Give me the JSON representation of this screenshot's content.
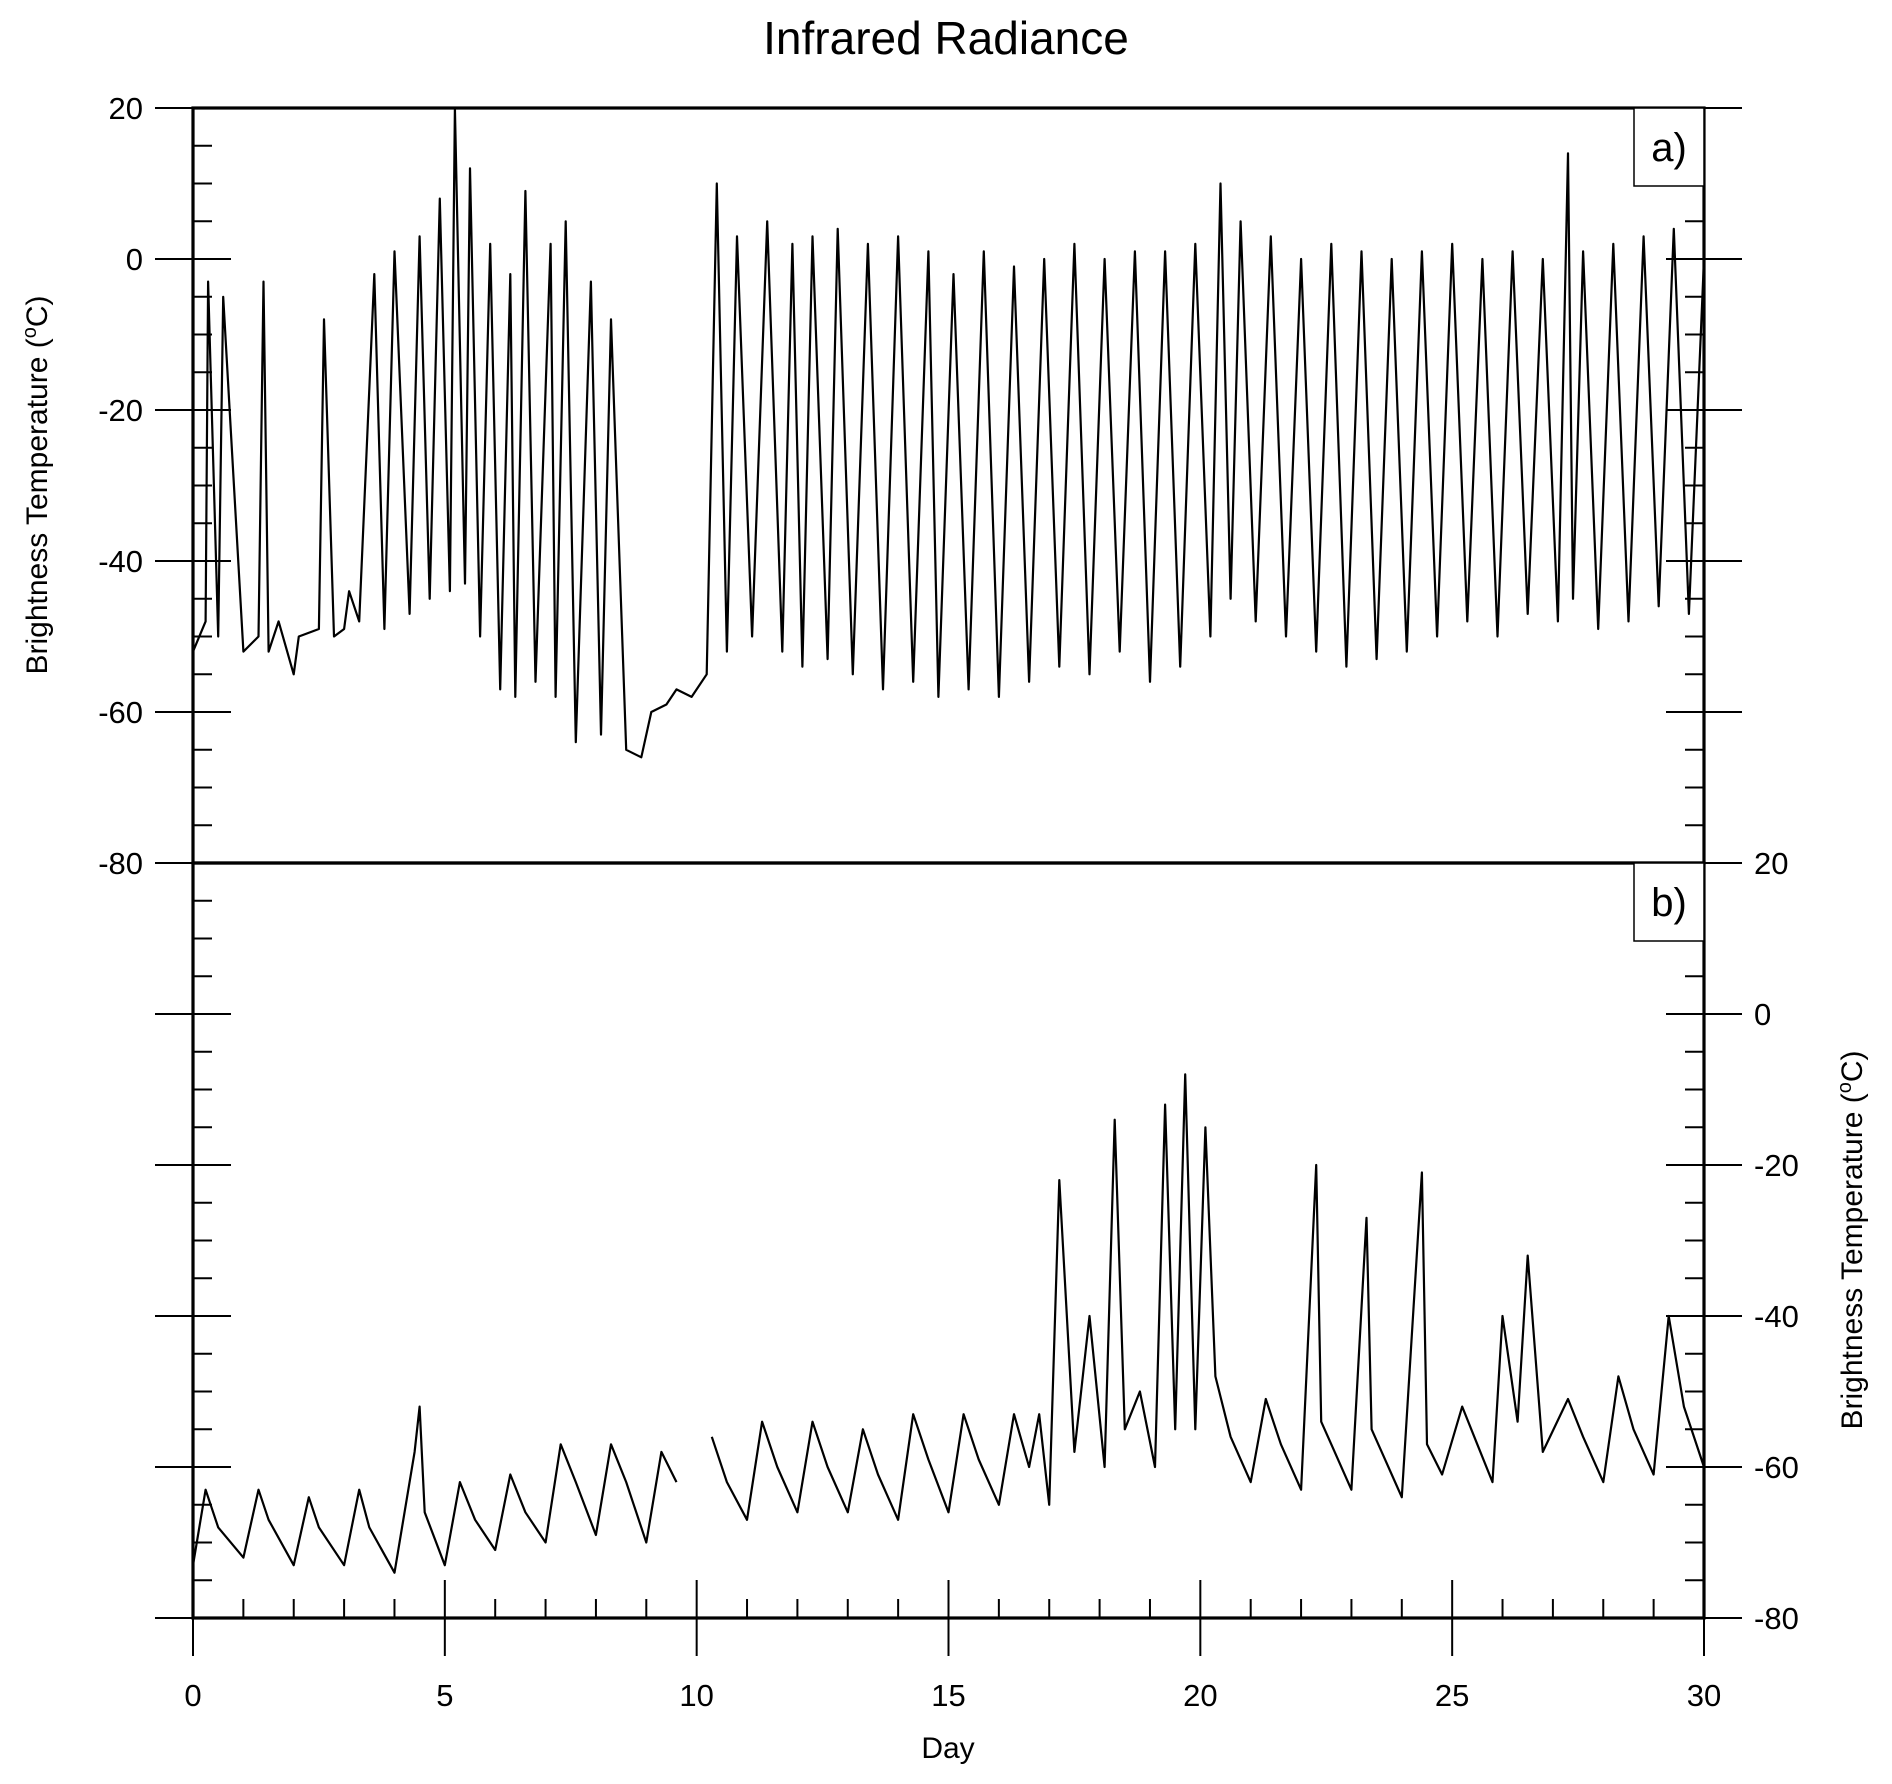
{
  "chart_data": {
    "title": "Infrared Radiance",
    "xlabel": "Day",
    "x_ticks": [
      "0",
      "5",
      "10",
      "15",
      "20",
      "25",
      "30"
    ],
    "xlim": [
      0,
      30
    ],
    "ylim": [
      -80,
      20
    ],
    "panels": [
      {
        "panel": "a)",
        "type": "line",
        "ylabel": "Brightness Temperature (°C)",
        "ylabel_main": "Brightness Temperature (",
        "ylabel_sup": "o",
        "ylabel_tail": "C)",
        "y_axis_side": "left",
        "y_ticks": [
          "20",
          "0",
          "-20",
          "-40",
          "-60",
          "-80"
        ],
        "series": {
          "x": [
            0,
            0.25,
            0.3,
            0.5,
            0.6,
            1.0,
            1.3,
            1.4,
            1.5,
            1.7,
            2.0,
            2.1,
            2.5,
            2.6,
            2.8,
            3.0,
            3.1,
            3.3,
            3.6,
            3.8,
            4.0,
            4.3,
            4.5,
            4.7,
            4.9,
            5.1,
            5.2,
            5.4,
            5.5,
            5.7,
            5.9,
            6.1,
            6.3,
            6.4,
            6.6,
            6.8,
            7.1,
            7.2,
            7.4,
            7.6,
            7.9,
            8.1,
            8.3,
            8.6,
            8.9,
            9.1,
            9.4,
            9.6,
            9.9,
            10.2,
            10.4,
            10.6,
            10.8,
            11.1,
            11.4,
            11.7,
            11.9,
            12.1,
            12.3,
            12.6,
            12.8,
            13.1,
            13.4,
            13.7,
            14.0,
            14.3,
            14.6,
            14.8,
            15.1,
            15.4,
            15.7,
            16.0,
            16.3,
            16.6,
            16.9,
            17.2,
            17.5,
            17.8,
            18.1,
            18.4,
            18.7,
            19.0,
            19.3,
            19.6,
            19.9,
            20.2,
            20.4,
            20.6,
            20.8,
            21.1,
            21.4,
            21.7,
            22.0,
            22.3,
            22.6,
            22.9,
            23.2,
            23.5,
            23.8,
            24.1,
            24.4,
            24.7,
            25.0,
            25.3,
            25.6,
            25.9,
            26.2,
            26.5,
            26.8,
            27.1,
            27.3,
            27.4,
            27.6,
            27.9,
            28.2,
            28.5,
            28.8,
            29.1,
            29.4,
            29.7,
            30.0
          ],
          "y": [
            -52,
            -48,
            -3,
            -50,
            -5,
            -52,
            -50,
            -3,
            -52,
            -48,
            -55,
            -50,
            -49,
            -8,
            -50,
            -49,
            -44,
            -48,
            -2,
            -49,
            1,
            -47,
            3,
            -45,
            8,
            -44,
            20,
            -43,
            12,
            -50,
            2,
            -57,
            -2,
            -58,
            9,
            -56,
            2,
            -58,
            5,
            -64,
            -3,
            -63,
            -8,
            -65,
            -66,
            -60,
            -59,
            -57,
            -58,
            -55,
            10,
            -52,
            3,
            -50,
            5,
            -52,
            2,
            -54,
            3,
            -53,
            4,
            -55,
            2,
            -57,
            3,
            -56,
            1,
            -58,
            -2,
            -57,
            1,
            -58,
            -1,
            -56,
            0,
            -54,
            2,
            -55,
            0,
            -52,
            1,
            -56,
            1,
            -54,
            2,
            -50,
            10,
            -45,
            5,
            -48,
            3,
            -50,
            0,
            -52,
            2,
            -54,
            1,
            -53,
            0,
            -52,
            1,
            -50,
            2,
            -48,
            0,
            -50,
            1,
            -47,
            0,
            -48,
            14,
            -45,
            1,
            -49,
            2,
            -48,
            3,
            -46,
            4,
            -47,
            0
          ]
        }
      },
      {
        "panel": "b)",
        "type": "line",
        "ylabel": "Brightness Temperature (°C)",
        "ylabel_main": "Brightness Temperature (",
        "ylabel_sup": "o",
        "ylabel_tail": "C)",
        "y_axis_side": "right",
        "y_ticks": [
          "20",
          "0",
          "-20",
          "-40",
          "-60",
          "-80"
        ],
        "series": {
          "x": [
            0,
            0.25,
            0.5,
            1.0,
            1.3,
            1.5,
            2.0,
            2.3,
            2.5,
            3.0,
            3.3,
            3.5,
            4.0,
            4.4,
            4.5,
            4.6,
            5.0,
            5.3,
            5.6,
            6.0,
            6.3,
            6.6,
            7.0,
            7.3,
            7.6,
            8.0,
            8.3,
            8.6,
            9.0,
            9.3,
            9.6,
            null,
            10.3,
            10.6,
            11.0,
            11.3,
            11.6,
            12.0,
            12.3,
            12.6,
            13.0,
            13.3,
            13.6,
            14.0,
            14.3,
            14.6,
            15.0,
            15.3,
            15.6,
            16.0,
            16.3,
            16.6,
            16.8,
            17.0,
            17.2,
            17.5,
            17.8,
            18.1,
            18.3,
            18.5,
            18.8,
            19.1,
            19.3,
            19.5,
            19.7,
            19.9,
            20.1,
            20.3,
            20.6,
            21.0,
            21.3,
            21.6,
            22.0,
            22.3,
            22.4,
            22.6,
            23.0,
            23.3,
            23.4,
            23.6,
            24.0,
            24.4,
            24.5,
            24.8,
            25.2,
            25.5,
            25.8,
            26.0,
            26.3,
            26.5,
            26.8,
            27.3,
            27.6,
            28.0,
            28.3,
            28.6,
            29.0,
            29.3,
            29.6,
            30.0
          ],
          "y": [
            -73,
            -63,
            -68,
            -72,
            -63,
            -67,
            -73,
            -64,
            -68,
            -73,
            -63,
            -68,
            -74,
            -58,
            -52,
            -66,
            -73,
            -62,
            -67,
            -71,
            -61,
            -66,
            -70,
            -57,
            -62,
            -69,
            -57,
            -62,
            -70,
            -58,
            -62,
            null,
            -56,
            -62,
            -67,
            -54,
            -60,
            -66,
            -54,
            -60,
            -66,
            -55,
            -61,
            -67,
            -53,
            -59,
            -66,
            -53,
            -59,
            -65,
            -53,
            -60,
            -53,
            -65,
            -22,
            -58,
            -40,
            -60,
            -14,
            -55,
            -50,
            -60,
            -12,
            -55,
            -8,
            -55,
            -15,
            -48,
            -56,
            -62,
            -51,
            -57,
            -63,
            -20,
            -54,
            -57,
            -63,
            -27,
            -55,
            -58,
            -64,
            -21,
            -57,
            -61,
            -52,
            -57,
            -62,
            -40,
            -54,
            -32,
            -58,
            -51,
            -56,
            -62,
            -48,
            -55,
            -61,
            -40,
            -52,
            -60
          ]
        }
      }
    ]
  }
}
